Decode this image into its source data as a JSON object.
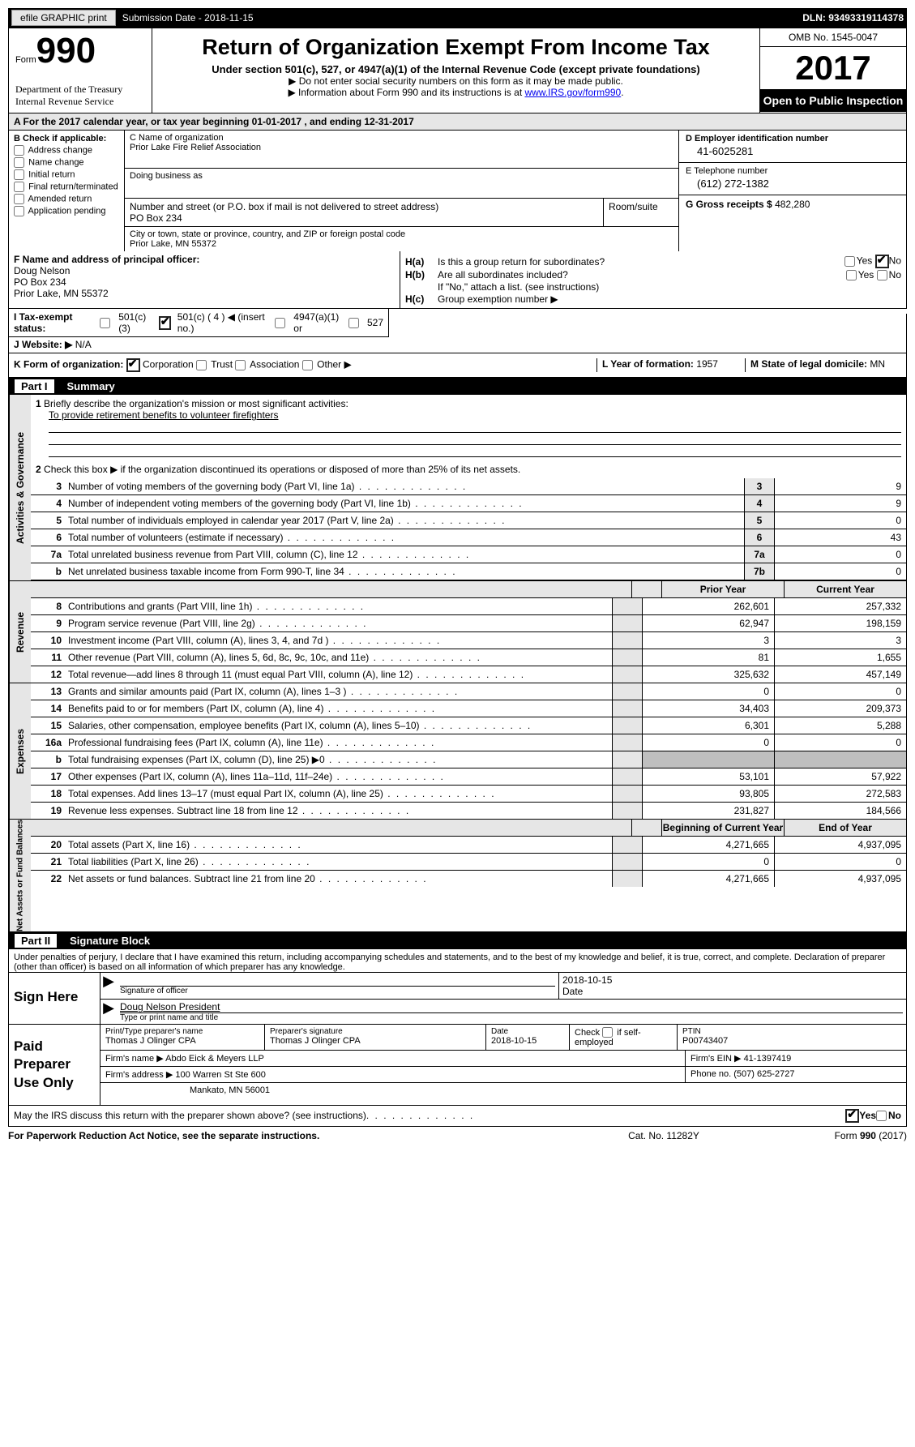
{
  "topbar": {
    "btn": "efile GRAPHIC print",
    "sub": "Submission Date - 2018-11-15",
    "dln": "DLN: 93493319114378"
  },
  "hdr": {
    "formword": "Form",
    "formnum": "990",
    "dept": "Department of the Treasury\nInternal Revenue Service",
    "title": "Return of Organization Exempt From Income Tax",
    "sub1": "Under section 501(c), 527, or 4947(a)(1) of the Internal Revenue Code (except private foundations)",
    "sub2": "▶ Do not enter social security numbers on this form as it may be made public.",
    "sub3_pre": "▶ Information about Form 990 and its instructions is at ",
    "sub3_link": "www.IRS.gov/form990",
    "omb": "OMB No. 1545-0047",
    "year": "2017",
    "open": "Open to Public Inspection"
  },
  "A": "A  For the 2017 calendar year, or tax year beginning 01-01-2017   , and ending 12-31-2017",
  "B": {
    "title": "B Check if applicable:",
    "items": [
      "Address change",
      "Name change",
      "Initial return",
      "Final return/terminated",
      "Amended return",
      "Application pending"
    ]
  },
  "C": {
    "name_lbl": "C Name of organization",
    "name": "Prior Lake Fire Relief Association",
    "dba_lbl": "Doing business as",
    "dba": "",
    "addr_lbl": "Number and street (or P.O. box if mail is not delivered to street address)",
    "addr": "PO Box 234",
    "room_lbl": "Room/suite",
    "city_lbl": "City or town, state or province, country, and ZIP or foreign postal code",
    "city": "Prior Lake, MN  55372"
  },
  "D": {
    "lbl": "D Employer identification number",
    "val": "41-6025281"
  },
  "E": {
    "lbl": "E Telephone number",
    "val": "(612) 272-1382"
  },
  "G": {
    "lbl": "G Gross receipts $",
    "val": "482,280"
  },
  "F": {
    "lbl": "F  Name and address of principal officer:",
    "name": "Doug Nelson",
    "addr": "PO Box 234",
    "city": "Prior Lake, MN  55372"
  },
  "H": {
    "a": "Is this a group return for subordinates?",
    "b": "Are all subordinates included?",
    "bnote": "If \"No,\" attach a list. (see instructions)",
    "c": "Group exemption number ▶",
    "yes": "Yes",
    "no": "No"
  },
  "I": {
    "lbl": "I  Tax-exempt status:",
    "o1": "501(c)(3)",
    "o2": "501(c) ( 4 ) ◀ (insert no.)",
    "o3": "4947(a)(1) or",
    "o4": "527"
  },
  "J": {
    "lbl": "J  Website: ▶",
    "val": "N/A"
  },
  "K": {
    "lbl": "K Form of organization:",
    "o1": "Corporation",
    "o2": "Trust",
    "o3": "Association",
    "o4": "Other ▶"
  },
  "L": {
    "lbl": "L Year of formation:",
    "val": "1957"
  },
  "M": {
    "lbl": "M State of legal domicile:",
    "val": "MN"
  },
  "part1": {
    "tag": "Part I",
    "title": "Summary"
  },
  "gov": {
    "vlabel": "Activities & Governance",
    "q1": "Briefly describe the organization's mission or most significant activities:",
    "q1a": "To provide retirement benefits to volunteer firefighters",
    "q2": "Check this box ▶        if the organization discontinued its operations or disposed of more than 25% of its net assets.",
    "rows": [
      {
        "n": "3",
        "t": "Number of voting members of the governing body (Part VI, line 1a)",
        "b": "3",
        "v": "9"
      },
      {
        "n": "4",
        "t": "Number of independent voting members of the governing body (Part VI, line 1b)",
        "b": "4",
        "v": "9"
      },
      {
        "n": "5",
        "t": "Total number of individuals employed in calendar year 2017 (Part V, line 2a)",
        "b": "5",
        "v": "0"
      },
      {
        "n": "6",
        "t": "Total number of volunteers (estimate if necessary)",
        "b": "6",
        "v": "43"
      },
      {
        "n": "7a",
        "t": "Total unrelated business revenue from Part VIII, column (C), line 12",
        "b": "7a",
        "v": "0"
      },
      {
        "n": "b",
        "t": "Net unrelated business taxable income from Form 990-T, line 34",
        "b": "7b",
        "v": "0"
      }
    ]
  },
  "rev": {
    "vlabel": "Revenue",
    "hdr": {
      "py": "Prior Year",
      "cy": "Current Year"
    },
    "rows": [
      {
        "n": "8",
        "t": "Contributions and grants (Part VIII, line 1h)",
        "py": "262,601",
        "cy": "257,332"
      },
      {
        "n": "9",
        "t": "Program service revenue (Part VIII, line 2g)",
        "py": "62,947",
        "cy": "198,159"
      },
      {
        "n": "10",
        "t": "Investment income (Part VIII, column (A), lines 3, 4, and 7d )",
        "py": "3",
        "cy": "3"
      },
      {
        "n": "11",
        "t": "Other revenue (Part VIII, column (A), lines 5, 6d, 8c, 9c, 10c, and 11e)",
        "py": "81",
        "cy": "1,655"
      },
      {
        "n": "12",
        "t": "Total revenue—add lines 8 through 11 (must equal Part VIII, column (A), line 12)",
        "py": "325,632",
        "cy": "457,149"
      }
    ]
  },
  "exp": {
    "vlabel": "Expenses",
    "rows": [
      {
        "n": "13",
        "t": "Grants and similar amounts paid (Part IX, column (A), lines 1–3 )",
        "py": "0",
        "cy": "0"
      },
      {
        "n": "14",
        "t": "Benefits paid to or for members (Part IX, column (A), line 4)",
        "py": "34,403",
        "cy": "209,373"
      },
      {
        "n": "15",
        "t": "Salaries, other compensation, employee benefits (Part IX, column (A), lines 5–10)",
        "py": "6,301",
        "cy": "5,288"
      },
      {
        "n": "16a",
        "t": "Professional fundraising fees (Part IX, column (A), line 11e)",
        "py": "0",
        "cy": "0"
      },
      {
        "n": "b",
        "t": "Total fundraising expenses (Part IX, column (D), line 25) ▶0",
        "py": "gray",
        "cy": "gray"
      },
      {
        "n": "17",
        "t": "Other expenses (Part IX, column (A), lines 11a–11d, 11f–24e)",
        "py": "53,101",
        "cy": "57,922"
      },
      {
        "n": "18",
        "t": "Total expenses. Add lines 13–17 (must equal Part IX, column (A), line 25)",
        "py": "93,805",
        "cy": "272,583"
      },
      {
        "n": "19",
        "t": "Revenue less expenses. Subtract line 18 from line 12",
        "py": "231,827",
        "cy": "184,566"
      }
    ]
  },
  "net": {
    "vlabel": "Net Assets or Fund Balances",
    "hdr": {
      "py": "Beginning of Current Year",
      "cy": "End of Year"
    },
    "rows": [
      {
        "n": "20",
        "t": "Total assets (Part X, line 16)",
        "py": "4,271,665",
        "cy": "4,937,095"
      },
      {
        "n": "21",
        "t": "Total liabilities (Part X, line 26)",
        "py": "0",
        "cy": "0"
      },
      {
        "n": "22",
        "t": "Net assets or fund balances. Subtract line 21 from line 20",
        "py": "4,271,665",
        "cy": "4,937,095"
      }
    ]
  },
  "part2": {
    "tag": "Part II",
    "title": "Signature Block"
  },
  "perjury": "Under penalties of perjury, I declare that I have examined this return, including accompanying schedules and statements, and to the best of my knowledge and belief, it is true, correct, and complete. Declaration of preparer (other than officer) is based on all information of which preparer has any knowledge.",
  "sign": {
    "label": "Sign Here",
    "date": "2018-10-15",
    "sig_lbl": "Signature of officer",
    "date_lbl": "Date",
    "name": "Doug Nelson President",
    "name_lbl": "Type or print name and title"
  },
  "prep": {
    "label": "Paid Preparer Use Only",
    "r1": {
      "a_lbl": "Print/Type preparer's name",
      "a": "Thomas J Olinger CPA",
      "b_lbl": "Preparer's signature",
      "b": "Thomas J Olinger CPA",
      "c_lbl": "Date",
      "c": "2018-10-15",
      "d_lbl": "Check        if self-employed",
      "e_lbl": "PTIN",
      "e": "P00743407"
    },
    "r2": {
      "a_lbl": "Firm's name     ▶",
      "a": "Abdo Eick & Meyers LLP",
      "b_lbl": "Firm's EIN ▶",
      "b": "41-1397419"
    },
    "r3": {
      "a_lbl": "Firm's address ▶",
      "a": "100 Warren St Ste 600",
      "b_lbl": "Phone no.",
      "b": "(507) 625-2727"
    },
    "r4": {
      "a": "Mankato, MN  56001"
    }
  },
  "discuss": {
    "q": "May the IRS discuss this return with the preparer shown above? (see instructions)",
    "yes": "Yes",
    "no": "No"
  },
  "foot": {
    "l": "For Paperwork Reduction Act Notice, see the separate instructions.",
    "m": "Cat. No. 11282Y",
    "r": "Form 990 (2017)"
  },
  "colors": {
    "link": "#0000ee",
    "shade": "#e6e6e6",
    "gray": "#bfbfbf"
  }
}
